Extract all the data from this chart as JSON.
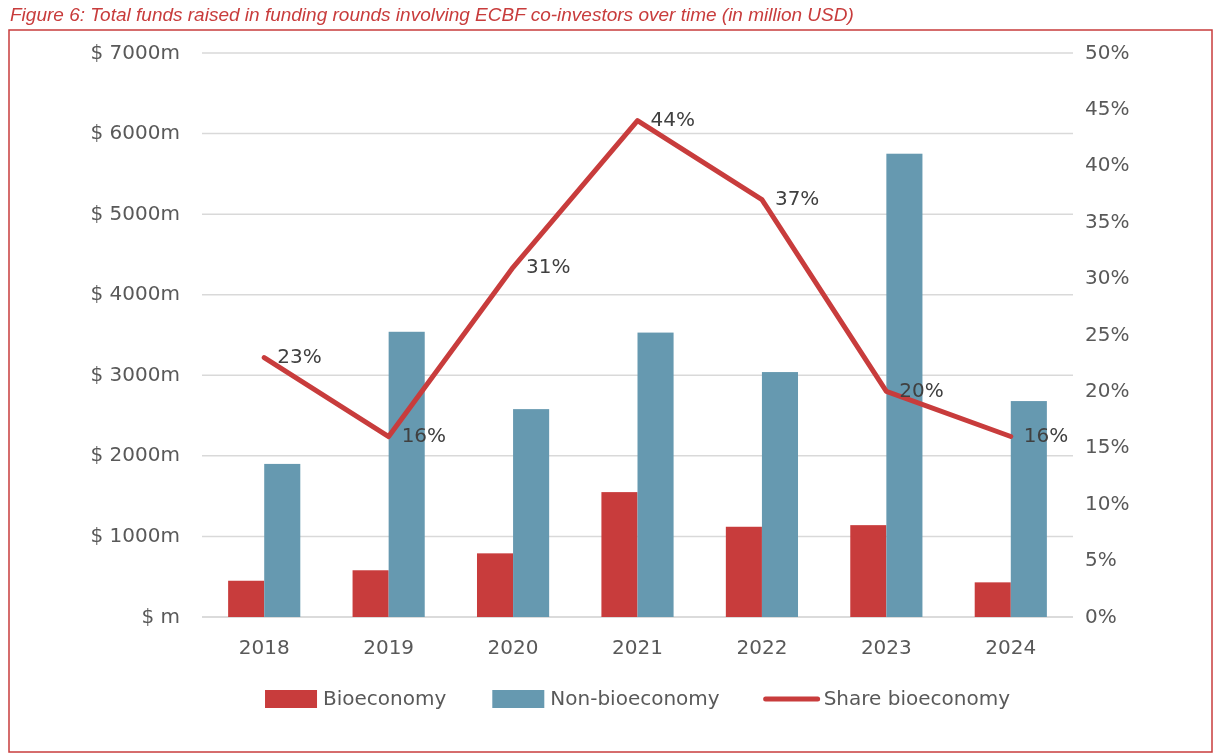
{
  "chart_data": {
    "type": "bar",
    "title": "Figure 6: Total funds raised in funding rounds involving ECBF co-investors over time (in million USD)",
    "categories": [
      "2018",
      "2019",
      "2020",
      "2021",
      "2022",
      "2023",
      "2024"
    ],
    "series": [
      {
        "name": "Bioeconomy",
        "color": "#c83c3c",
        "values": [
          450,
          580,
          790,
          1550,
          1120,
          1140,
          430
        ]
      },
      {
        "name": "Non-bioeconomy",
        "color": "#6699b0",
        "values": [
          1900,
          3540,
          2580,
          3530,
          3040,
          5750,
          2680
        ]
      },
      {
        "name": "Share bioeconomy",
        "type": "line",
        "axis": "y2",
        "color": "#c83c3c",
        "values": [
          23,
          16,
          31,
          44,
          37,
          20,
          16
        ],
        "value_labels": [
          "23%",
          "16%",
          "31%",
          "44%",
          "37%",
          "20%",
          "16%"
        ]
      }
    ],
    "ylim": [
      0,
      7000
    ],
    "yticks": [
      {
        "value": 0,
        "label": "$ m"
      },
      {
        "value": 1000,
        "label": "$ 1000m"
      },
      {
        "value": 2000,
        "label": "$ 2000m"
      },
      {
        "value": 3000,
        "label": "$ 3000m"
      },
      {
        "value": 4000,
        "label": "$ 4000m"
      },
      {
        "value": 5000,
        "label": "$ 5000m"
      },
      {
        "value": 6000,
        "label": "$ 6000m"
      },
      {
        "value": 7000,
        "label": "$ 7000m"
      }
    ],
    "y2lim": [
      0,
      50
    ],
    "y2ticks": [
      {
        "value": 0,
        "label": "0%"
      },
      {
        "value": 5,
        "label": "5%"
      },
      {
        "value": 10,
        "label": "10%"
      },
      {
        "value": 15,
        "label": "15%"
      },
      {
        "value": 20,
        "label": "20%"
      },
      {
        "value": 25,
        "label": "25%"
      },
      {
        "value": 30,
        "label": "30%"
      },
      {
        "value": 35,
        "label": "35%"
      },
      {
        "value": 40,
        "label": "40%"
      },
      {
        "value": 45,
        "label": "45%"
      },
      {
        "value": 50,
        "label": "50%"
      }
    ],
    "grid": "y",
    "legend": "bottom"
  }
}
